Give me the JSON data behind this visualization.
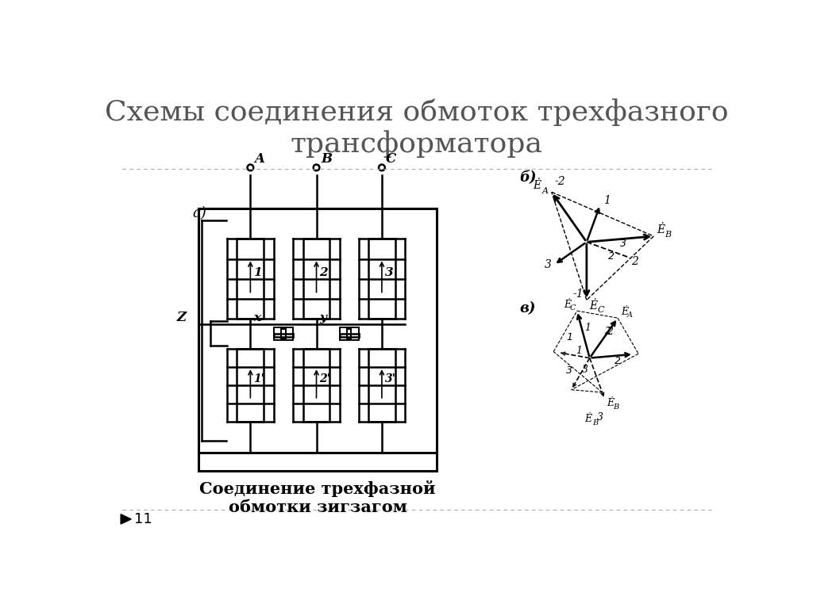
{
  "title": "Схемы соединения обмоток трехфазного\nтрансформатора",
  "title_fontsize": 26,
  "title_color": "#555555",
  "bg_color": "#ffffff",
  "caption": "Соединение трехфазной\nобмотки зигзагом",
  "caption_fontsize": 15,
  "slide_number": "11",
  "separator_color": "#aaaaaa"
}
